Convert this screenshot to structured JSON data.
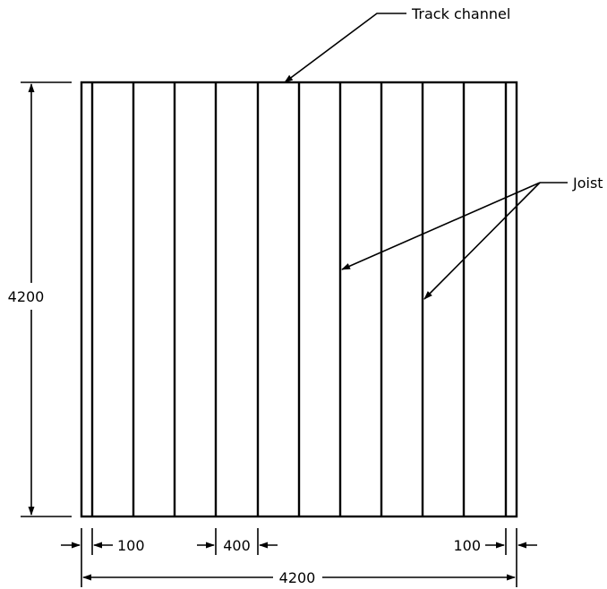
{
  "labels": {
    "track_channel": "Track channel",
    "joist": "Joist"
  },
  "dimensions": {
    "overall_height": "4200",
    "overall_width": "4200",
    "edge_offset_left": "100",
    "joist_spacing": "400",
    "edge_offset_right": "100"
  },
  "colors": {
    "line": "#000000",
    "background": "#ffffff"
  }
}
